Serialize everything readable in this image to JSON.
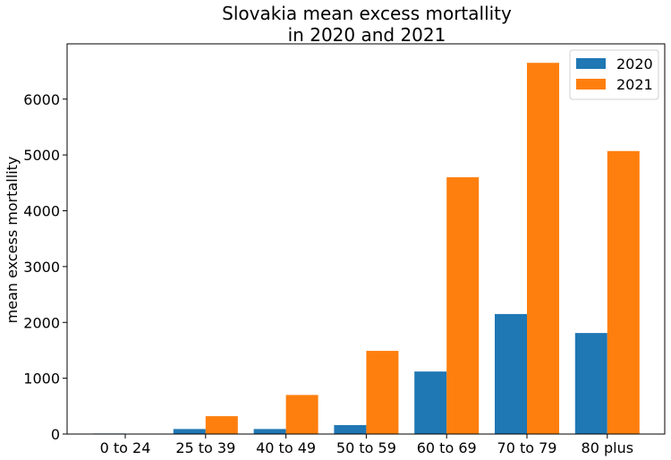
{
  "chart_data": {
    "type": "bar",
    "title_line1": "Slovakia mean excess mortallity",
    "title_line2": "in 2020 and 2021",
    "xlabel": "",
    "ylabel": "mean excess mortallity",
    "categories": [
      "0 to 24",
      "25 to 39",
      "40 to 49",
      "50 to 59",
      "60 to 69",
      "70 to 79",
      "80 plus"
    ],
    "series": [
      {
        "name": "2020",
        "color": "#1f77b4",
        "values": [
          10,
          90,
          90,
          160,
          1120,
          2150,
          1810
        ]
      },
      {
        "name": "2021",
        "color": "#ff7f0e",
        "values": [
          0,
          320,
          700,
          1490,
          4600,
          6650,
          5070
        ]
      }
    ],
    "yticks": [
      0,
      1000,
      2000,
      3000,
      4000,
      5000,
      6000
    ],
    "ylim": [
      0,
      6990
    ],
    "grid": false,
    "legend_position": "top-right"
  }
}
